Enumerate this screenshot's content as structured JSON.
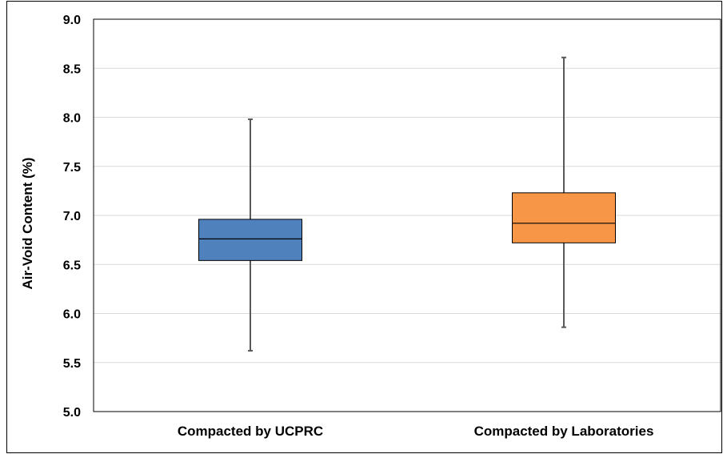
{
  "chart_data": {
    "type": "box",
    "title": "",
    "xlabel": "",
    "ylabel": "Air-Void Content  (%)",
    "ylim": [
      5.0,
      9.0
    ],
    "yticks": [
      "5.0",
      "5.5",
      "6.0",
      "6.5",
      "7.0",
      "7.5",
      "8.0",
      "8.5",
      "9.0"
    ],
    "grid": true,
    "categories": [
      "Compacted by UCPRC",
      "Compacted by Laboratories"
    ],
    "boxes": [
      {
        "category": "Compacted by UCPRC",
        "min": 5.62,
        "q1": 6.54,
        "median": 6.76,
        "q3": 6.96,
        "max": 7.98,
        "color": "#4f81bd"
      },
      {
        "category": "Compacted by Laboratories",
        "min": 5.86,
        "q1": 6.72,
        "median": 6.92,
        "q3": 7.23,
        "max": 8.61,
        "color": "#f79646"
      }
    ]
  }
}
